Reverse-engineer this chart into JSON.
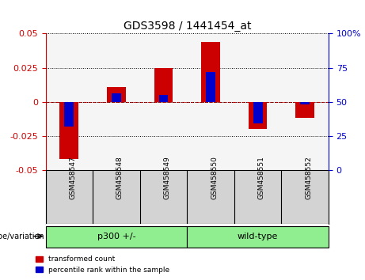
{
  "title": "GDS3598 / 1441454_at",
  "samples": [
    "GSM458547",
    "GSM458548",
    "GSM458549",
    "GSM458550",
    "GSM458551",
    "GSM458552"
  ],
  "groups": [
    {
      "name": "p300 +/-",
      "samples": [
        "GSM458547",
        "GSM458548",
        "GSM458549"
      ],
      "color": "#90ee90"
    },
    {
      "name": "wild-type",
      "samples": [
        "GSM458550",
        "GSM458551",
        "GSM458552"
      ],
      "color": "#90ee90"
    }
  ],
  "red_values": [
    -0.042,
    0.011,
    0.025,
    0.044,
    -0.02,
    -0.012
  ],
  "blue_values": [
    -0.018,
    0.006,
    0.005,
    0.022,
    -0.016,
    -0.002
  ],
  "ylim_left": [
    -0.05,
    0.05
  ],
  "yticks_left": [
    -0.05,
    -0.025,
    0,
    0.025,
    0.05
  ],
  "yticks_right": [
    0,
    25,
    50,
    75,
    100
  ],
  "ylim_right": [
    0,
    100
  ],
  "left_color": "#cc0000",
  "right_color": "#0000cc",
  "bar_width": 0.4,
  "blue_bar_width": 0.2,
  "grid_color": "#000000",
  "background_color": "#ffffff",
  "plot_bg_color": "#f5f5f5",
  "genotype_label": "genotype/variation",
  "legend_red": "transformed count",
  "legend_blue": "percentile rank within the sample"
}
